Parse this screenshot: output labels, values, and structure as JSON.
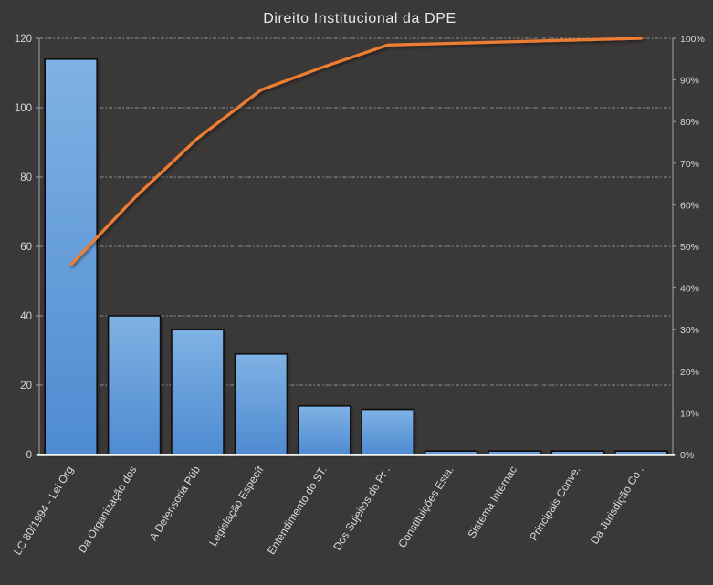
{
  "window": {
    "background_color": "#3b3838"
  },
  "chart_data": {
    "type": "bar+line",
    "subtype": "pareto",
    "title": "Direito Institucional da DPE",
    "legend": "none",
    "grid": "horizontal-dashed",
    "categories": [
      "LC 80/1994 - Lei Org",
      "Da Organização dos",
      "A Defensoria Púb",
      "Legislação Específ",
      "Entendimento do ST.",
      "Dos Sujeitos do Pr .",
      "Constituições Esta.",
      "Sistema Internac",
      "Principais Conve.",
      "Da Jurisdição Co ."
    ],
    "bars": {
      "axis": "left",
      "values": [
        114,
        40,
        36,
        29,
        14,
        13,
        1,
        1,
        1,
        1
      ]
    },
    "line": {
      "axis": "right",
      "values_pct": [
        45.6,
        61.6,
        76.0,
        87.6,
        93.2,
        98.4,
        98.8,
        99.2,
        99.6,
        100.0
      ]
    },
    "left_axis": {
      "min": 0,
      "max": 120,
      "step": 20,
      "ticks": [
        "0",
        "20",
        "40",
        "60",
        "80",
        "100",
        "120"
      ]
    },
    "right_axis": {
      "min": 0,
      "max": 100,
      "step": 10,
      "ticks": [
        "0%",
        "10%",
        "20%",
        "30%",
        "40%",
        "50%",
        "60%",
        "70%",
        "80%",
        "90%",
        "100%"
      ]
    },
    "colors": {
      "background": "#3b3838",
      "bar_fill_top": "#7fb2e4",
      "bar_fill_bottom": "#4e8bd1",
      "bar_border": "#101010",
      "line": "#ed7d31",
      "gridline": "#929292",
      "axis_line": "#a3a3a3",
      "baseline": "#f2f2f2",
      "title_text": "#e8e8e8",
      "tick_text": "#d6d6d6"
    }
  }
}
